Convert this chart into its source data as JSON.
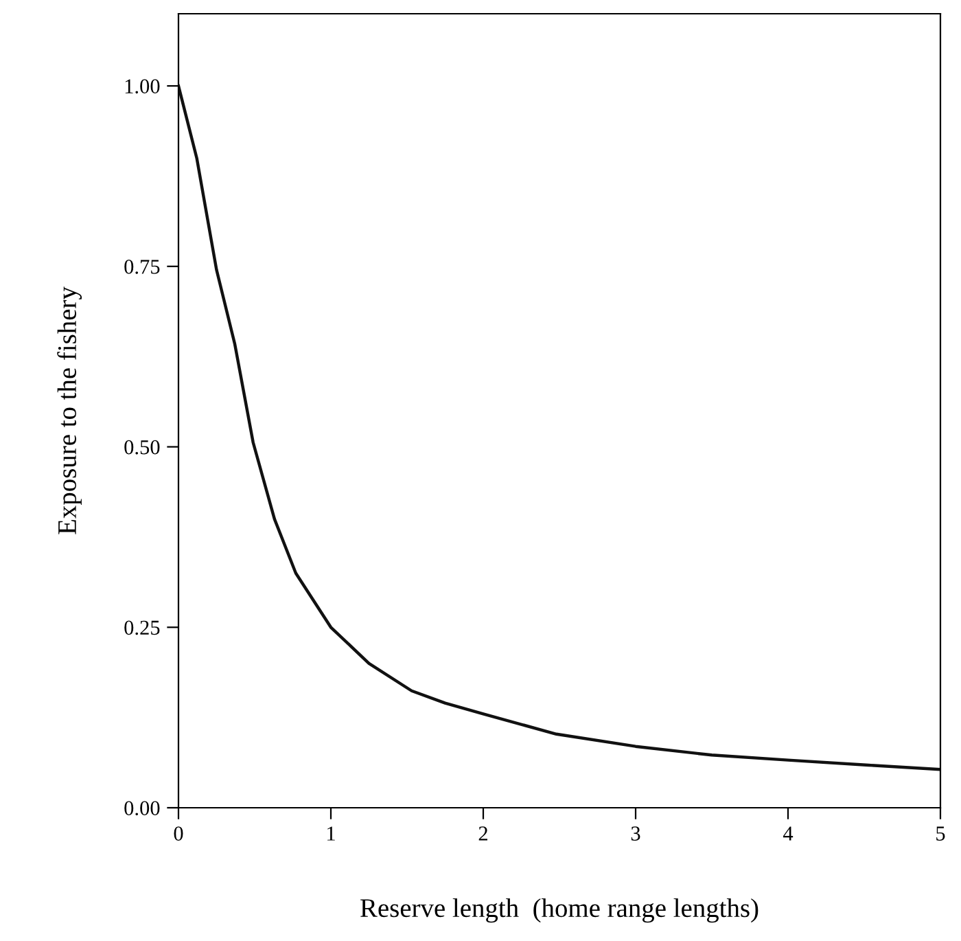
{
  "chart_data": {
    "type": "line",
    "xlabel": "Reserve length  (home range lengths)",
    "ylabel": "Exposure to the fishery",
    "series": [
      {
        "color": "#111111",
        "x": [
          0,
          0.12,
          0.25,
          0.37,
          0.49,
          0.63,
          0.77,
          1.0,
          1.25,
          1.53,
          1.75,
          2.0,
          2.48,
          3.0,
          3.5,
          4.0,
          4.53,
          5.0
        ],
        "values": [
          1.0,
          0.9,
          0.745,
          0.642,
          0.506,
          0.4,
          0.325,
          0.25,
          0.2,
          0.162,
          0.145,
          0.13,
          0.102,
          0.085,
          0.073,
          0.066,
          0.059,
          0.053
        ]
      }
    ],
    "xlim": [
      0,
      5
    ],
    "xticks": [
      0,
      1,
      2,
      3,
      4,
      5
    ],
    "ylim": [
      0,
      1.1
    ],
    "yticks": [
      {
        "value": 0,
        "label": "0.00"
      },
      {
        "value": 0.25,
        "label": "0.25"
      },
      {
        "value": 0.5,
        "label": "0.50"
      },
      {
        "value": 0.75,
        "label": "0.75"
      },
      {
        "value": 1.0,
        "label": "1.00"
      }
    ],
    "grid": false,
    "legend": false,
    "marker": "none",
    "line_style": "solid"
  }
}
